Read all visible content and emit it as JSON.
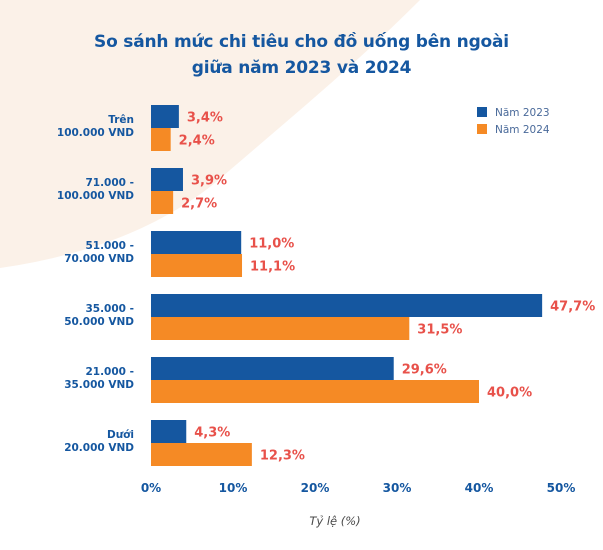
{
  "chart_data": {
    "type": "bar",
    "orientation": "horizontal",
    "title_lines": [
      "So sánh mức chi tiêu cho đồ uống bên ngoài",
      "giữa năm 2023 và 2024"
    ],
    "categories": [
      [
        "Trên",
        "100.000 VND"
      ],
      [
        "71.000 -",
        "100.000 VND"
      ],
      [
        "51.000 -",
        "70.000 VND"
      ],
      [
        "35.000 -",
        "50.000 VND"
      ],
      [
        "21.000 -",
        "35.000 VND"
      ],
      [
        "Dưới",
        "20.000 VND"
      ]
    ],
    "series": [
      {
        "name": "Năm 2023",
        "color": "#1557a0",
        "values": [
          3.4,
          3.9,
          11.0,
          47.7,
          29.6,
          4.3
        ],
        "labels": [
          "3,4%",
          "3,9%",
          "11,0%",
          "47,7%",
          "29,6%",
          "4,3%"
        ]
      },
      {
        "name": "Năm 2024",
        "color": "#f58a25",
        "values": [
          2.4,
          2.7,
          11.1,
          31.5,
          40.0,
          12.3
        ],
        "labels": [
          "2,4%",
          "2,7%",
          "11,1%",
          "31,5%",
          "40,0%",
          "12,3%"
        ]
      }
    ],
    "xlim": [
      0,
      50
    ],
    "xticks": [
      0,
      10,
      20,
      30,
      40,
      50
    ],
    "xtick_labels": [
      "0%",
      "10%",
      "20%",
      "30%",
      "40%",
      "50%"
    ],
    "xlabel": "Tỷ lệ (%)",
    "legend_position": "top-right",
    "colors": {
      "label_text": "#e8514a",
      "category_text": "#1557a0",
      "background_shape": "#fbf1e8"
    }
  }
}
